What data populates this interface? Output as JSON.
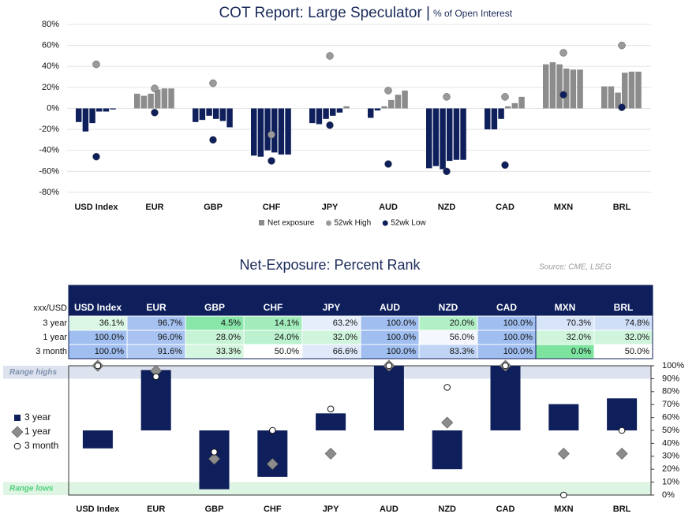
{
  "chart_data": [
    {
      "type": "bar",
      "title": "COT Report: Large Speculator |",
      "subtitle": "% of Open Interest",
      "categories": [
        "USD Index",
        "EUR",
        "GBP",
        "CHF",
        "JPY",
        "AUD",
        "NZD",
        "CAD",
        "MXN",
        "BRL"
      ],
      "series": [
        {
          "name": "Net exposure",
          "color": "#8c8c8c",
          "negative_color": "#0e1f5b",
          "values": [
            [
              -13,
              -22,
              -14,
              -3,
              -3,
              -1
            ],
            [
              14,
              12,
              14,
              18,
              19,
              19
            ],
            [
              -13,
              -11,
              -7,
              -10,
              -12,
              -18
            ],
            [
              -45,
              -46,
              -40,
              -42,
              -44,
              -44
            ],
            [
              -14,
              -15,
              -10,
              -7,
              -4,
              2
            ],
            [
              -9,
              -2,
              2,
              8,
              13,
              17
            ],
            [
              -57,
              -55,
              -58,
              -50,
              -49,
              -49
            ],
            [
              -20,
              -20,
              -10,
              2,
              5,
              11
            ],
            [
              42,
              44,
              42,
              38,
              37,
              37
            ],
            [
              21,
              21,
              15,
              34,
              35,
              35
            ]
          ]
        },
        {
          "name": "52wk High",
          "type": "scatter",
          "color": "#9a9a9a",
          "values": [
            42,
            19,
            24,
            -25,
            50,
            17,
            11,
            11,
            53,
            60
          ]
        },
        {
          "name": "52wk Low",
          "type": "scatter",
          "color": "#0e1f5b",
          "values": [
            -46,
            -4,
            -30,
            -50,
            -16,
            -53,
            -60,
            -54,
            13,
            1
          ]
        }
      ],
      "ylim": [
        -80,
        80
      ],
      "yticks": [
        {
          "value": -80,
          "label": "-80%"
        },
        {
          "value": -60,
          "label": "-60%"
        },
        {
          "value": -40,
          "label": "-40%"
        },
        {
          "value": -20,
          "label": "-20%"
        },
        {
          "value": 0,
          "label": "0%"
        },
        {
          "value": 20,
          "label": "20%"
        },
        {
          "value": 40,
          "label": "40%"
        },
        {
          "value": 60,
          "label": "60%"
        },
        {
          "value": 80,
          "label": "80%"
        }
      ],
      "grid": true
    },
    {
      "type": "bar",
      "title": "Net-Exposure: Percent Rank",
      "source": "Source: CME, LSEG",
      "categories": [
        "USD Index",
        "EUR",
        "GBP",
        "CHF",
        "JPY",
        "AUD",
        "NZD",
        "CAD",
        "MXN",
        "BRL"
      ],
      "base": 50,
      "series": [
        {
          "name": "3 year",
          "color": "#0e1f5b",
          "values": [
            36.1,
            96.7,
            4.5,
            14.1,
            63.2,
            100,
            20,
            100,
            70.3,
            74.8
          ]
        },
        {
          "name": "1 year",
          "type": "scatter",
          "marker": "diamond",
          "color": "#8c8c8c",
          "values": [
            100,
            96,
            28,
            24,
            32,
            100,
            56,
            100,
            32,
            32
          ]
        },
        {
          "name": "3 month",
          "type": "scatter",
          "marker": "circle",
          "color": "#ffffff",
          "values": [
            100,
            91.6,
            33.3,
            50,
            66.6,
            100,
            83.3,
            100,
            0,
            50
          ]
        }
      ],
      "bands": [
        {
          "from": 90,
          "to": 100,
          "color": "#dde3ee",
          "label": "Range highs",
          "label_color": "#8090b0"
        },
        {
          "from": 0,
          "to": 10,
          "color": "#def5e3",
          "label": "Range lows",
          "label_color": "#4fd07a"
        }
      ],
      "ylim": [
        0,
        100
      ],
      "yticks": [
        {
          "value": 0,
          "label": "0%"
        },
        {
          "value": 10,
          "label": "10%"
        },
        {
          "value": 20,
          "label": "20%"
        },
        {
          "value": 30,
          "label": "30%"
        },
        {
          "value": 40,
          "label": "40%"
        },
        {
          "value": 50,
          "label": "50%"
        },
        {
          "value": 60,
          "label": "60%"
        },
        {
          "value": 70,
          "label": "70%"
        },
        {
          "value": 80,
          "label": "80%"
        },
        {
          "value": 90,
          "label": "90%"
        },
        {
          "value": 100,
          "label": "100%"
        }
      ]
    }
  ],
  "table": {
    "header": [
      "xxx/USD",
      "USD Index",
      "EUR",
      "GBP",
      "CHF",
      "JPY",
      "AUD",
      "NZD",
      "CAD",
      "MXN",
      "BRL"
    ],
    "rows": [
      [
        "3 year",
        "36.1%",
        "96.7%",
        "4.5%",
        "14.1%",
        "63.2%",
        "100.0%",
        "20.0%",
        "100.0%",
        "70.3%",
        "74.8%"
      ],
      [
        "1 year",
        "100.0%",
        "96.0%",
        "28.0%",
        "24.0%",
        "32.0%",
        "100.0%",
        "56.0%",
        "100.0%",
        "32.0%",
        "32.0%"
      ],
      [
        "3 month",
        "100.0%",
        "91.6%",
        "33.3%",
        "50.0%",
        "66.6%",
        "100.0%",
        "83.3%",
        "100.0%",
        "0.0%",
        "50.0%"
      ]
    ]
  }
}
